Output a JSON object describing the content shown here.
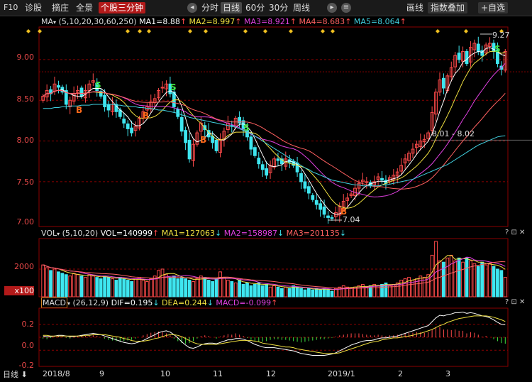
{
  "toolbar": {
    "f10": "F10",
    "diagnose": "诊股",
    "hedge": "摘庄",
    "full": "全景",
    "stock_3min": "个股三分钟",
    "periods": [
      "分时",
      "日线",
      "60分",
      "30分",
      "周线"
    ],
    "active_period": "日线",
    "draw_line": "画线",
    "index_overlay": "指数叠加",
    "add_watch": "+自选",
    "icon_prev": "◂",
    "icon_next": "▸",
    "icon_menu": "≡"
  },
  "ma_legend": {
    "name": "MA",
    "params": "(5,10,20,30,60,250)",
    "ma1": "MA1=8.88",
    "ma2": "MA2=8.997",
    "ma3": "MA3=8.921",
    "ma4": "MA4=8.683",
    "ma5": "MA5=8.064",
    "up_arrow": "↑",
    "down_arrow": "↓"
  },
  "vol_legend": {
    "name": "VOL",
    "params": "(5,10,20)",
    "vol": "VOL=140999",
    "ma1": "MA1=127063",
    "ma2": "MA2=158987",
    "ma3": "MA3=201135"
  },
  "macd_legend": {
    "name": "MACD",
    "params": "(26,12,9)",
    "dif": "DIF=0.195",
    "dea": "DEA=0.244",
    "macd": "MACD=-0.099"
  },
  "price_axis": [
    "9.00",
    "8.50",
    "8.00",
    "7.50",
    "7.00"
  ],
  "vol_axis": [
    "2000",
    "x100"
  ],
  "macd_axis": [
    "0.2",
    "0.0",
    "-0.2"
  ],
  "annotations": {
    "high": "9.27",
    "low": "7.04",
    "range_label": "8.01 - 8.02",
    "buy": "B",
    "sell": "S"
  },
  "x_axis": {
    "period_btn": "日线",
    "labels": [
      "2018/8",
      "9",
      "10",
      "11",
      "12",
      "2019/1",
      "2",
      "3"
    ]
  },
  "panel_icons": "? ⊡ ✕",
  "colors": {
    "up": "#ff4a4a",
    "down": "#3ee6f0",
    "ma1": "#ffffff",
    "ma2": "#f0e040",
    "ma3": "#e040e0",
    "ma4": "#ff6060",
    "ma5": "#40d0e0",
    "axis": "#8b0000"
  },
  "chart_data": {
    "type": "candlestick",
    "ylim": [
      6.95,
      9.4
    ],
    "closes": [
      8.55,
      8.62,
      8.58,
      8.7,
      8.66,
      8.6,
      8.45,
      8.5,
      8.58,
      8.62,
      8.55,
      8.62,
      8.7,
      8.74,
      8.62,
      8.55,
      8.42,
      8.38,
      8.45,
      8.36,
      8.3,
      8.22,
      8.15,
      8.1,
      8.18,
      8.28,
      8.36,
      8.42,
      8.48,
      8.52,
      8.62,
      8.66,
      8.7,
      8.58,
      8.42,
      8.3,
      8.12,
      7.98,
      7.78,
      7.96,
      8.1,
      8.22,
      8.14,
      8.05,
      7.98,
      7.88,
      8.02,
      8.12,
      8.22,
      8.18,
      8.28,
      8.22,
      8.15,
      8.05,
      7.9,
      7.82,
      7.72,
      7.65,
      7.58,
      7.7,
      7.78,
      7.76,
      7.72,
      7.78,
      7.74,
      7.7,
      7.62,
      7.5,
      7.42,
      7.36,
      7.28,
      7.22,
      7.16,
      7.1,
      7.06,
      7.05,
      7.12,
      7.2,
      7.26,
      7.3,
      7.35,
      7.42,
      7.48,
      7.52,
      7.5,
      7.45,
      7.5,
      7.56,
      7.52,
      7.48,
      7.55,
      7.58,
      7.62,
      7.7,
      7.78,
      7.85,
      7.9,
      7.96,
      8.0,
      8.02,
      8.1,
      8.35,
      8.6,
      8.75,
      8.65,
      8.8,
      8.9,
      9.05,
      9.0,
      9.1,
      8.95,
      9.15,
      9.2,
      9.1,
      9.05,
      9.18,
      9.2,
      9.1,
      8.95,
      8.88,
      9.1
    ],
    "volumes": [
      2300,
      2100,
      1900,
      2000,
      1800,
      1700,
      1600,
      1500,
      1700,
      1600,
      1500,
      1400,
      1600,
      1500,
      1400,
      1300,
      1500,
      1400,
      1300,
      1200,
      1400,
      1300,
      1200,
      1100,
      1300,
      1400,
      1200,
      1100,
      1300,
      1500,
      1900,
      2000,
      1600,
      1400,
      1500,
      1300,
      1400,
      1300,
      1200,
      1100,
      1300,
      1500,
      1400,
      1200,
      1100,
      1300,
      1800,
      1400,
      1200,
      1100,
      1000,
      1200,
      900,
      1000,
      800,
      900,
      1000,
      800,
      900,
      700,
      800,
      700,
      600,
      700,
      600,
      800,
      700,
      600,
      500,
      600,
      500,
      600,
      500,
      600,
      500,
      400,
      600,
      700,
      800,
      700,
      600,
      700,
      800,
      900,
      700,
      800,
      900,
      800,
      900,
      1000,
      800,
      900,
      1000,
      1200,
      1300,
      1400,
      1200,
      1300,
      1500,
      1400,
      1600,
      3000,
      4000,
      2600,
      2500,
      2800,
      3000,
      2600,
      2800,
      2500,
      2800,
      2600,
      2400,
      2200,
      2500,
      2300,
      2400,
      2200,
      2000,
      1900,
      1410
    ],
    "macd_hist": [
      -0.02,
      -0.03,
      -0.01,
      0.01,
      0.02,
      0.01,
      -0.01,
      -0.02,
      0.0,
      0.02,
      0.03,
      0.02,
      0.03,
      0.04,
      0.02,
      0.0,
      -0.02,
      -0.04,
      -0.05,
      -0.06,
      -0.07,
      -0.06,
      -0.05,
      -0.04,
      -0.02,
      0.0,
      0.03,
      0.05,
      0.07,
      0.08,
      0.09,
      0.08,
      0.06,
      0.03,
      -0.02,
      -0.06,
      -0.09,
      -0.1,
      -0.09,
      -0.06,
      -0.02,
      0.02,
      0.03,
      0.02,
      0.0,
      -0.02,
      0.01,
      0.03,
      0.05,
      0.04,
      0.06,
      0.04,
      0.02,
      -0.01,
      -0.04,
      -0.06,
      -0.07,
      -0.07,
      -0.06,
      -0.04,
      -0.03,
      -0.03,
      -0.04,
      -0.04,
      -0.05,
      -0.06,
      -0.07,
      -0.08,
      -0.07,
      -0.06,
      -0.05,
      -0.04,
      -0.03,
      -0.03,
      -0.02,
      -0.01,
      0.01,
      0.03,
      0.04,
      0.05,
      0.06,
      0.06,
      0.06,
      0.05,
      0.04,
      0.03,
      0.03,
      0.04,
      0.03,
      0.02,
      0.03,
      0.03,
      0.04,
      0.05,
      0.06,
      0.07,
      0.07,
      0.08,
      0.08,
      0.07,
      0.08,
      0.12,
      0.15,
      0.16,
      0.12,
      0.12,
      0.11,
      0.12,
      0.1,
      0.1,
      0.06,
      0.08,
      0.07,
      0.04,
      0.01,
      0.02,
      0.0,
      -0.03,
      -0.06,
      -0.09,
      -0.1
    ],
    "dif": [
      0.02,
      0.01,
      0.01,
      0.02,
      0.03,
      0.03,
      0.02,
      0.01,
      0.01,
      0.02,
      0.03,
      0.04,
      0.05,
      0.06,
      0.05,
      0.04,
      0.02,
      0.0,
      -0.02,
      -0.04,
      -0.06,
      -0.08,
      -0.09,
      -0.1,
      -0.09,
      -0.07,
      -0.05,
      -0.02,
      0.01,
      0.04,
      0.07,
      0.09,
      0.1,
      0.08,
      0.04,
      -0.01,
      -0.07,
      -0.12,
      -0.16,
      -0.17,
      -0.15,
      -0.12,
      -0.1,
      -0.09,
      -0.09,
      -0.1,
      -0.08,
      -0.06,
      -0.04,
      -0.04,
      -0.02,
      -0.02,
      -0.03,
      -0.05,
      -0.08,
      -0.11,
      -0.13,
      -0.15,
      -0.16,
      -0.16,
      -0.16,
      -0.17,
      -0.18,
      -0.19,
      -0.2,
      -0.21,
      -0.23,
      -0.25,
      -0.26,
      -0.27,
      -0.28,
      -0.28,
      -0.28,
      -0.28,
      -0.27,
      -0.26,
      -0.24,
      -0.21,
      -0.18,
      -0.15,
      -0.12,
      -0.1,
      -0.08,
      -0.06,
      -0.05,
      -0.05,
      -0.04,
      -0.02,
      -0.01,
      -0.01,
      0.0,
      0.01,
      0.02,
      0.04,
      0.06,
      0.08,
      0.1,
      0.12,
      0.14,
      0.16,
      0.18,
      0.24,
      0.3,
      0.34,
      0.33,
      0.35,
      0.36,
      0.38,
      0.38,
      0.39,
      0.37,
      0.38,
      0.37,
      0.35,
      0.33,
      0.32,
      0.3,
      0.27,
      0.23,
      0.2,
      0.195
    ],
    "dea": [
      0.03,
      0.03,
      0.02,
      0.02,
      0.02,
      0.02,
      0.02,
      0.02,
      0.02,
      0.02,
      0.02,
      0.03,
      0.03,
      0.04,
      0.04,
      0.04,
      0.04,
      0.03,
      0.02,
      0.01,
      0.0,
      -0.02,
      -0.03,
      -0.05,
      -0.06,
      -0.06,
      -0.06,
      -0.05,
      -0.04,
      -0.02,
      -0.01,
      0.01,
      0.03,
      0.04,
      0.04,
      0.03,
      0.01,
      -0.02,
      -0.05,
      -0.08,
      -0.1,
      -0.11,
      -0.11,
      -0.11,
      -0.11,
      -0.11,
      -0.1,
      -0.09,
      -0.08,
      -0.07,
      -0.06,
      -0.05,
      -0.05,
      -0.05,
      -0.05,
      -0.06,
      -0.07,
      -0.09,
      -0.1,
      -0.11,
      -0.12,
      -0.13,
      -0.14,
      -0.15,
      -0.15,
      -0.16,
      -0.18,
      -0.19,
      -0.2,
      -0.21,
      -0.22,
      -0.23,
      -0.24,
      -0.25,
      -0.25,
      -0.25,
      -0.25,
      -0.24,
      -0.22,
      -0.2,
      -0.18,
      -0.16,
      -0.14,
      -0.12,
      -0.1,
      -0.08,
      -0.07,
      -0.06,
      -0.04,
      -0.03,
      -0.02,
      -0.01,
      -0.01,
      0.0,
      0.01,
      0.02,
      0.03,
      0.05,
      0.06,
      0.08,
      0.1,
      0.12,
      0.15,
      0.18,
      0.2,
      0.23,
      0.25,
      0.27,
      0.29,
      0.3,
      0.31,
      0.32,
      0.33,
      0.33,
      0.33,
      0.33,
      0.32,
      0.31,
      0.29,
      0.27,
      0.244
    ],
    "ma_series": [
      "MA1",
      "MA2",
      "MA3",
      "MA4",
      "MA5"
    ],
    "ma5_line": [
      8.4,
      8.4,
      8.4,
      8.41,
      8.41,
      8.42,
      8.42,
      8.43,
      8.43,
      8.43,
      8.44,
      8.44,
      8.44,
      8.45,
      8.45,
      8.45,
      8.45,
      8.45,
      8.45,
      8.44,
      8.44,
      8.43,
      8.43,
      8.42,
      8.42,
      8.41,
      8.41,
      8.4,
      8.4,
      8.39,
      8.38,
      8.38,
      8.37,
      8.36,
      8.35,
      8.34,
      8.32,
      8.31,
      8.29,
      8.28,
      8.27,
      8.26,
      8.25,
      8.24,
      8.23,
      8.22,
      8.21,
      8.2,
      8.19,
      8.18,
      8.17,
      8.15,
      8.13,
      8.11,
      8.09,
      8.06,
      8.03,
      8.0,
      7.97,
      7.94,
      7.91,
      7.88,
      7.85,
      7.82,
      7.79,
      7.76,
      7.73,
      7.7,
      7.67,
      7.65,
      7.62,
      7.6,
      7.58,
      7.56,
      7.54,
      7.52,
      7.51,
      7.5,
      7.49,
      7.48,
      7.47,
      7.46,
      7.46,
      7.45,
      7.45,
      7.45,
      7.45,
      7.45,
      7.46,
      7.46,
      7.47,
      7.48,
      7.49,
      7.5,
      7.51,
      7.52,
      7.53,
      7.55,
      7.57,
      7.59,
      7.61,
      7.63,
      7.65,
      7.67,
      7.69,
      7.71,
      7.74,
      7.77,
      7.8,
      7.83,
      7.86,
      7.89,
      7.92,
      7.95,
      7.97,
      7.99,
      8.01,
      8.03,
      8.05,
      8.06,
      8.064
    ]
  }
}
